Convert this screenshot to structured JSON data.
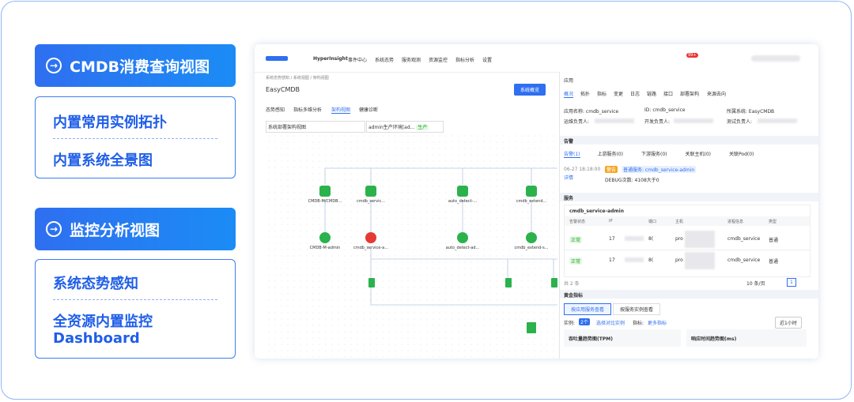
{
  "left": {
    "sections": [
      {
        "title": "CMDB消费查询视图",
        "items": [
          [
            "内置常用实例拓扑"
          ],
          [
            "内置系统全景图"
          ]
        ]
      },
      {
        "title": "监控分析视图",
        "items": [
          [
            "系统态势感知"
          ],
          [
            "全资源内置监控",
            "Dashboard"
          ]
        ]
      }
    ]
  },
  "app": {
    "brand": "HyperInsight",
    "nav": [
      "事件中心",
      "系统态势",
      "服务观测",
      "资源监控",
      "指标分析",
      "设置"
    ],
    "badge": "99+",
    "breadcrumb": "系统态势感知 / 系统视图 / 架构视图",
    "page_title": "EasyCMDB",
    "overview_button": "系统概览",
    "tabs": [
      "态势感知",
      "指标多维分析",
      "架构视图",
      "健康诊断"
    ],
    "select_view": "系统部署架构视图",
    "select_env": "admin生产环境[ad...",
    "env_tag": "生产",
    "nodes_top": [
      "CMDB-M/CMDB...",
      "cmdb_servic...",
      "auto_detect-...",
      "cmdb_extend..."
    ],
    "nodes_bottom": [
      "CMDB-M-admin",
      "cmdb_service-a...",
      "auto_detect-ad...",
      "cmdb_extend-s..."
    ],
    "panel": {
      "title": "应用",
      "tabs": [
        "概况",
        "拓扑",
        "指标",
        "变更",
        "日志",
        "链路",
        "接口",
        "部署架构",
        "来源去向"
      ],
      "fields": [
        "应用名称: cmdb_service",
        "ID: cmdb_service",
        "所属系统: EasyCMDB",
        "运维负责人:",
        "开发负责人:",
        "测试负责人:"
      ],
      "alert_section": "告警",
      "alert_tabs": [
        "告警(1)",
        "上游服务(0)",
        "下游服务(0)",
        "关联主机(0)",
        "关联Pod(0)"
      ],
      "alert_time": "06-27 18:18:00",
      "alert_detail": "详情",
      "alert_level": "警告",
      "alert_target": "普通服务: cmdb_service-admin",
      "alert_message": "DEBUG次数: 4108大于0",
      "service_section": "服务",
      "service_name": "cmdb_service-admin",
      "headers": [
        "告警状态",
        "IP",
        "端口",
        "主机",
        "进程信息",
        "类型"
      ],
      "rows": [
        [
          "正常",
          "17",
          "8(",
          "pro",
          "cmdb_service",
          "普通"
        ],
        [
          "正常",
          "17",
          "8(",
          "pro",
          "cmdb_service",
          "普通"
        ]
      ],
      "total": "共 2 条",
      "page_size": "10 条/页",
      "page": "1",
      "golden_section": "黄金指标",
      "golden_buttons": [
        "按应用服务查看",
        "按服务实例查看"
      ],
      "instance_label": "实例:",
      "instance_count": "2个",
      "compare": "选择对比实例",
      "metric_label": "指标:",
      "more_metrics": "更多指标",
      "time_range": "近1小时",
      "charts": [
        "吞吐量趋势图(TPM)",
        "响应时间趋势图(ms)"
      ]
    }
  }
}
